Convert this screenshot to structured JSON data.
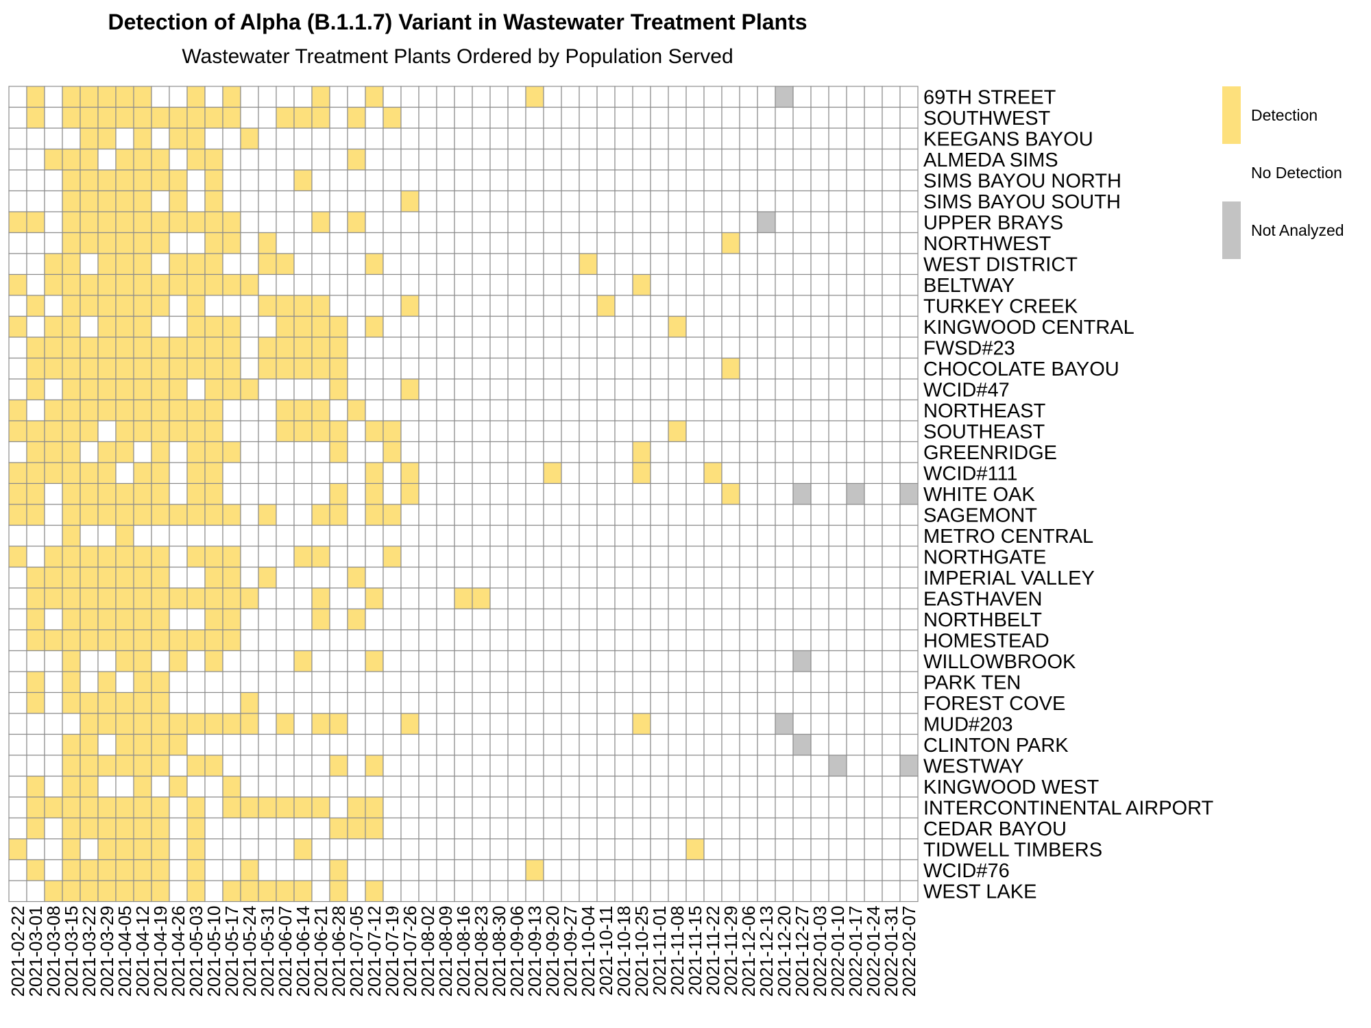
{
  "chart_data": {
    "type": "heatmap",
    "title": "Detection of Alpha (B.1.1.7) Variant in Wastewater Treatment Plants",
    "subtitle": "Wastewater Treatment Plants Ordered by Population Served",
    "columns": [
      "2021-02-22",
      "2021-03-01",
      "2021-03-08",
      "2021-03-15",
      "2021-03-22",
      "2021-03-29",
      "2021-04-05",
      "2021-04-12",
      "2021-04-19",
      "2021-04-26",
      "2021-05-03",
      "2021-05-10",
      "2021-05-17",
      "2021-05-24",
      "2021-05-31",
      "2021-06-07",
      "2021-06-14",
      "2021-06-21",
      "2021-06-28",
      "2021-07-05",
      "2021-07-12",
      "2021-07-19",
      "2021-07-26",
      "2021-08-02",
      "2021-08-09",
      "2021-08-16",
      "2021-08-23",
      "2021-08-30",
      "2021-09-06",
      "2021-09-13",
      "2021-09-20",
      "2021-09-27",
      "2021-10-04",
      "2021-10-11",
      "2021-10-18",
      "2021-10-25",
      "2021-11-01",
      "2021-11-08",
      "2021-11-15",
      "2021-11-22",
      "2021-11-29",
      "2021-12-06",
      "2021-12-13",
      "2021-12-20",
      "2021-12-27",
      "2022-01-03",
      "2022-01-10",
      "2022-01-17",
      "2022-01-24",
      "2022-01-31",
      "2022-02-07"
    ],
    "rows": [
      "69TH STREET",
      "SOUTHWEST",
      "KEEGANS BAYOU",
      "ALMEDA SIMS",
      "SIMS BAYOU NORTH",
      "SIMS BAYOU SOUTH",
      "UPPER BRAYS",
      "NORTHWEST",
      "WEST DISTRICT",
      "BELTWAY",
      "TURKEY CREEK",
      "KINGWOOD CENTRAL",
      "FWSD#23",
      "CHOCOLATE BAYOU",
      "WCID#47",
      "NORTHEAST",
      "SOUTHEAST",
      "GREENRIDGE",
      "WCID#111",
      "WHITE OAK",
      "SAGEMONT",
      "METRO CENTRAL",
      "NORTHGATE",
      "IMPERIAL VALLEY",
      "EASTHAVEN",
      "NORTHBELT",
      "HOMESTEAD",
      "WILLOWBROOK",
      "PARK TEN",
      "FOREST COVE",
      "MUD#203",
      "CLINTON PARK",
      "WESTWAY",
      "KINGWOOD WEST",
      "INTERCONTINENTAL AIRPORT",
      "CEDAR BAYOU",
      "TIDWELL TIMBERS",
      "WCID#76",
      "WEST LAKE"
    ],
    "encoding": {
      "D": "Detection",
      "N": "No Detection",
      "X": "Not Analyzed"
    },
    "grid": [
      "NDNDDDDDNNDNDNNNNDNNDNNNNNNNNDNNNNNNNNNNNNNXNNNNNNN",
      "NDNDDDDDDDDDDNNDDDNDNDNNNNNNNNNNNNNNNNNNNNNNNNNNNNN",
      "NNNNDDNDNDDNNDNNNNNNNNNNNNNNNNNNNNNNNNNNNNNNNNNNNNN",
      "NNDDDNDDDNDDNNNNNNNDNNNNNNNNNNNNNNNNNNNNNNNNNNNNNNN",
      "NNNDDDDDDDNDNNNNDNNNNNNNNNNNNNNNNNNNNNNNNNNNNNNNNNN",
      "NNNDDDDDNDNDNNNNNNNNNNDNNNNNNNNNNNNNNNNNNNNNNNNNNNN",
      "DDNDDDDDDDDDDNNNNDNDNNNNNNNNNNNNNNNNNNNNNNXNNNNNNNN",
      "NNNDDDDDDNNDDNDNNNNNNNNNNNNNNNNNNNNNNNNNDNNNNNNNNNN",
      "NNDDNDDDNDDDNNDDNNNNDNNNNNNNNNNNDNNNNNNNNNNNNNNNNNN",
      "DNDDDDDDDDDDDDNNNNNNNNNNNNNNNNNNNNNDNNNNNNNNNNNNNNN",
      "NDNDDDDDDNDNNNDDDDNNNNDNNNNNNNNNNDNNNNNNNNNNNNNNNNN",
      "DNDDNDDDNNDDDNNDDDDNDNNNNNNNNNNNNNNNNDNNNNNNNNNNNNN",
      "NDDDDDDDDDDDDNDDDDDNNNNNNNNNNNNNNNNNNNNNNNNNNNNNNNN",
      "NDDDDDDDDDDDDNDDDDDNNNNNNNNNNNNNNNNNNNNNDNNNNNNNNNN",
      "NDNDDDDDDDNDDDNNNNDNNNDNNNNNNNNNNNNNNNNNNNNNNNNNNNN",
      "DNDDDDDDDDDDNNNDDDNDNNNNNNNNNNNNNNNNNNNNNNNNNNNNNNN",
      "DDDDDNDDDDDDNNNDDDDNDDNNNNNNNNNNNNNNNDNNNNNNNNNNNNN",
      "NDDDNDDNDNDDDNNNNNDNNDNNNNNNNNNNNNNDNNNNNNNNNNNNNNN",
      "DDDDDDNDDNDDNNNNNNNNDNDNNNNNNNDNNNNDNNNDNNNNNNNNNNN",
      "DDNDDDDDDNDDNNNNNNDNDNDNNNNNNNNNNNNNNNNNDNNNXNNXNNX",
      "DDNDDDDDDDDDDNDNNDDNDDNNNNNNNNNNNNNNNNNNNNNNNNNNNNN",
      "NNNDNNDNNNNNNNNNNNNNNNNNNNNNNNNNNNNNNNNNNNNNNNNNNNN",
      "DNDDDDDDDNDDDNNNDDNNNDNNNNNNNNNNNNNNNNNNNNNNNNNNNNN",
      "NDDDDDDDDNNDDNDNNNNDNNNNNNNNNNNNNNNNNNNNNNNNNNNNNNN",
      "NDDDDDDDDDDDDDNNNDNNDNNNNDDNNNNNNNNNNNNNNNNNNNNNNNN",
      "NDNDDDDDDNNDDNNNNDNDNNNNNNNNNNNNNNNNNNNNNNNNNNNNNNN",
      "NDDDDDDDDDDDDNNNNNNNNNNNNNNNNNNNNNNNNNNNNNNNNNNNNNN",
      "NNNDNNDDNDNDNNNNDNNNDNNNNNNNNNNNNNNNNNNNNNNNXNNNNNN",
      "NDNDNDNDDNNNNNNNNNNNNNNNNNNNNNNNNNNNNNNNNNNNNNNNNNN",
      "NDNDDDDDDNNNNDNNNNNNNNNNNNNNNNNNNNNNNNNNNNNNNNNNNNN",
      "NNNNDDDDDDDDDDNDNDDNNNDNNNNNNNNNNNNDNNNNNNNXNNNNNNN",
      "NNNDDNDDDDNNNNNNNNNNNNNNNNNNNNNNNNNNNNNNNNNNXNNNNNN",
      "NNNDDDDDDNDDNNNNNNDNDNNNNNNNNNNNNNNNNNNNNNNNNNXNNNX",
      "NDNDDNNDNDNNDNNNNNNNNNNNNNNNNNNNNNNNNNNNNNNNNNNNNNN",
      "NDDDDDDDDNDNDDDDDDNDDNNNNNNNNNNNNNNNNNNNNNNNNNNNNNN",
      "NDNDDDDDDNDNNNNNNNDDDNNNNNNNNNNNNNNNNNNNNNNNNNNNNNN",
      "DNNDNDDDDNDNNNNNDNNNNNNNNNNNNNNNNNNNNNDNNNNNNNNNNNN",
      "NDNDDDDDDNDNNDNNNNDNNNNNNNNNNDNNNNNNNNNNNNNNNNNNNNN",
      "NNDDDDDDDNDNDDDDDNDNDNNNNNNNNNNNNNNNNNNNNNNNNNNNNNN"
    ],
    "legend": [
      {
        "key": "D",
        "label": "Detection",
        "color": "#fde07c"
      },
      {
        "key": "N",
        "label": "No Detection",
        "color": "#ffffff"
      },
      {
        "key": "X",
        "label": "Not Analyzed",
        "color": "#c3c3c3"
      }
    ],
    "legend_position": "top-right",
    "grid_lines": true
  }
}
